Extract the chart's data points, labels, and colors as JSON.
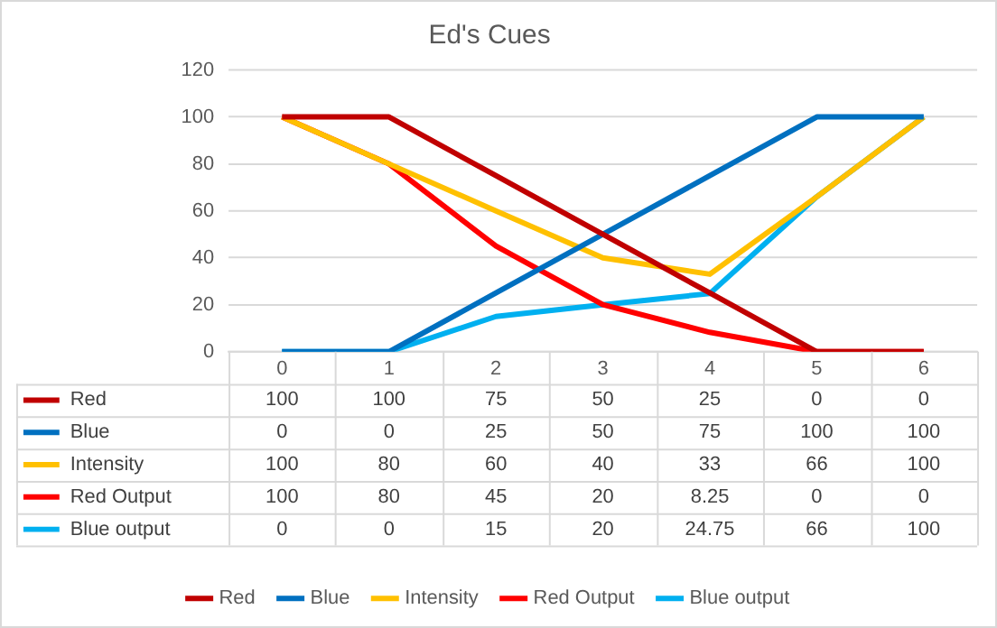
{
  "chart_data": {
    "type": "line",
    "title": "Ed's Cues",
    "categories": [
      "0",
      "1",
      "2",
      "3",
      "4",
      "5",
      "6"
    ],
    "series": [
      {
        "name": "Red",
        "color": "#c00000",
        "values": [
          100,
          100,
          75,
          50,
          25,
          0,
          0
        ]
      },
      {
        "name": "Blue",
        "color": "#0070c0",
        "values": [
          0,
          0,
          25,
          50,
          75,
          100,
          100
        ]
      },
      {
        "name": "Intensity",
        "color": "#ffc000",
        "values": [
          100,
          80,
          60,
          40,
          33,
          66,
          100
        ]
      },
      {
        "name": "Red Output",
        "color": "#ff0000",
        "values": [
          100,
          80,
          45,
          20,
          8.25,
          0,
          0
        ]
      },
      {
        "name": "Blue output",
        "color": "#00b0f0",
        "values": [
          0,
          0,
          15,
          20,
          24.75,
          66,
          100
        ]
      }
    ],
    "ylim": [
      0,
      120
    ],
    "yticks": [
      0,
      20,
      40,
      60,
      80,
      100,
      120
    ],
    "grid": "y",
    "legend": "bottom",
    "marker": "none",
    "line_style": "solid",
    "data_labels": true
  }
}
